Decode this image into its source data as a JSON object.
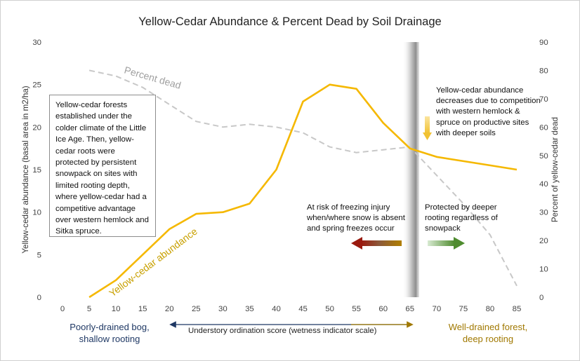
{
  "chart_data": {
    "type": "line",
    "title": "Yellow-Cedar Abundance & Percent Dead by Soil Drainage",
    "x": [
      0,
      5,
      10,
      15,
      20,
      25,
      30,
      35,
      40,
      45,
      50,
      55,
      60,
      65,
      70,
      75,
      80,
      85
    ],
    "x_ticks": [
      "0",
      "5",
      "10",
      "15",
      "20",
      "25",
      "30",
      "35",
      "40",
      "45",
      "50",
      "55",
      "60",
      "65",
      "70",
      "75",
      "80",
      "85"
    ],
    "xlabel": "Understory ordination score (wetness indicator scale)",
    "ylabel": "Yellow-cedar abundance (basal area in m2/ha)",
    "ylim": [
      0,
      30
    ],
    "y_ticks": [
      "0",
      "5",
      "10",
      "15",
      "20",
      "25",
      "30"
    ],
    "y2label": "Percent of yellow-cedar dead",
    "y2lim": [
      0,
      90
    ],
    "y2_ticks": [
      "0",
      "10",
      "20",
      "30",
      "40",
      "50",
      "60",
      "70",
      "80",
      "90"
    ],
    "grid": false,
    "series": [
      {
        "name": "Yellow-cedar abundance",
        "axis": "left",
        "color": "#f5b800",
        "style": "solid",
        "x": [
          5,
          10,
          15,
          20,
          25,
          30,
          35,
          40,
          45,
          50,
          55,
          60,
          65,
          70,
          75,
          80,
          85
        ],
        "values": [
          0,
          2,
          5,
          8,
          9.8,
          10,
          11,
          15,
          23,
          25,
          24.5,
          20.5,
          17.5,
          16.5,
          16,
          15.5,
          15
        ]
      },
      {
        "name": "Percent dead",
        "axis": "right",
        "color": "#c8c8c8",
        "style": "dashed",
        "x": [
          5,
          10,
          15,
          20,
          25,
          30,
          35,
          40,
          45,
          50,
          55,
          60,
          65,
          70,
          75,
          80,
          85
        ],
        "values": [
          80,
          78,
          74,
          68,
          62,
          60,
          61,
          60,
          58,
          53,
          51,
          52,
          53,
          43,
          33,
          22,
          4
        ]
      }
    ],
    "annotations": {
      "left_box": "Yellow-cedar forests established under the colder climate of the Little Ice Age. Then, yellow-cedar roots were protected  by persistent snowpack on sites with limited rooting depth, where yellow-cedar had a competitive advantage over western hemlock and Sitka spruce.",
      "risk": "At risk of freezing injury when/where  snow is absent and spring freezes occur",
      "protected": "Protected by deeper rooting regardless of snowpack",
      "competition": "Yellow-cedar abundance decreases due to competition with western hemlock & spruce on productive sites with deeper  soils",
      "bog_line1": "Poorly-drained bog,",
      "bog_line2": "shallow rooting",
      "forest_line1": "Well-drained forest,",
      "forest_line2": "deep rooting"
    }
  }
}
